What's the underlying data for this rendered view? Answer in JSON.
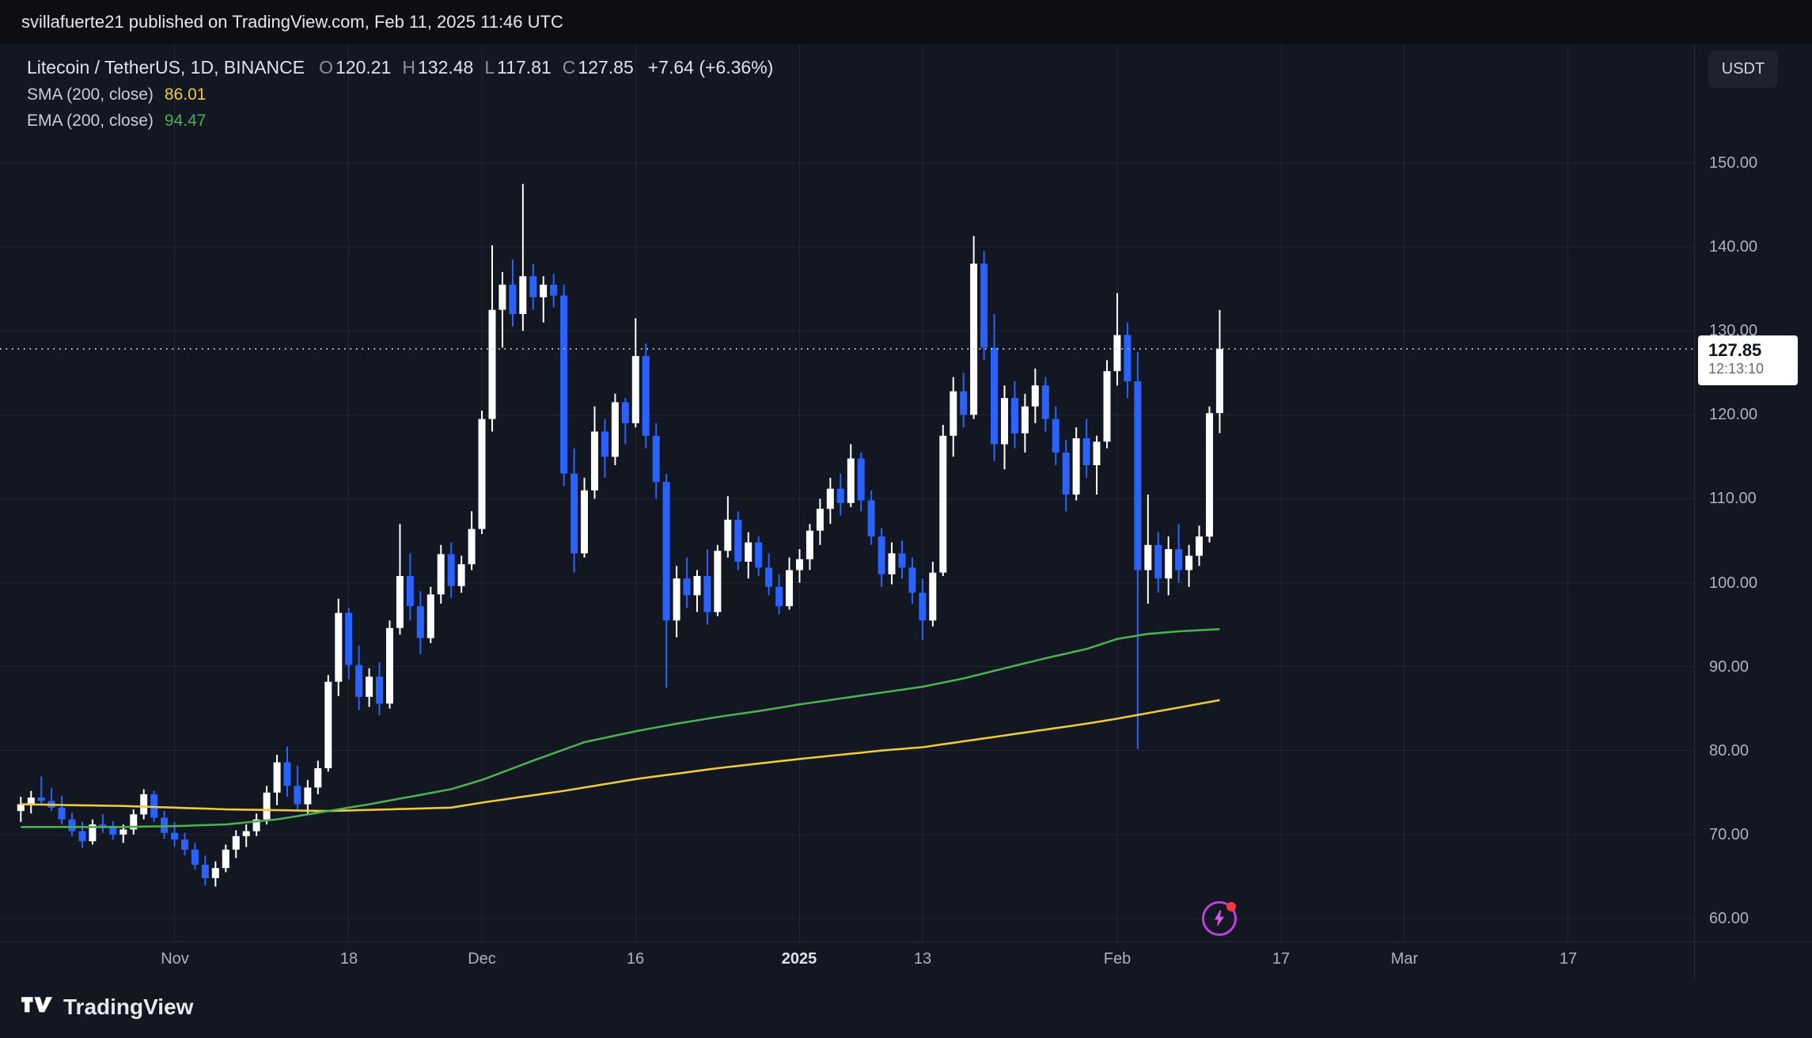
{
  "publish_bar": {
    "text": "svillafuerte21 published on TradingView.com, Feb 11, 2025 11:46 UTC"
  },
  "header": {
    "symbol_title": "Litecoin / TetherUS, 1D, BINANCE",
    "ohlc": [
      {
        "label": "O",
        "value": "120.21"
      },
      {
        "label": "H",
        "value": "132.48"
      },
      {
        "label": "L",
        "value": "117.81"
      },
      {
        "label": "C",
        "value": "127.85"
      }
    ],
    "change": "+7.64 (+6.36%)",
    "indicators": [
      {
        "name": "SMA (200, close)",
        "value": "86.01",
        "color": "#eecb3d"
      },
      {
        "name": "EMA (200, close)",
        "value": "94.47",
        "color": "#4caf50"
      }
    ]
  },
  "price_axis": {
    "currency_label": "USDT",
    "ticks": [
      150,
      140,
      130,
      120,
      110,
      100,
      90,
      80,
      70,
      60
    ],
    "last_price": {
      "value": "127.85",
      "countdown": "12:13:10"
    }
  },
  "time_axis": {
    "ticks": [
      {
        "label": "Nov",
        "day": 15
      },
      {
        "label": "18",
        "day": 32
      },
      {
        "label": "Dec",
        "day": 45
      },
      {
        "label": "16",
        "day": 60
      },
      {
        "label": "2025",
        "day": 76,
        "bold": true
      },
      {
        "label": "13",
        "day": 88
      },
      {
        "label": "Feb",
        "day": 107
      },
      {
        "label": "17",
        "day": 123
      },
      {
        "label": "Mar",
        "day": 135
      },
      {
        "label": "17",
        "day": 151
      }
    ]
  },
  "footer": {
    "brand": "TradingView"
  },
  "chart_data": {
    "type": "candlestick",
    "symbol": "LTC/USDT",
    "exchange": "BINANCE",
    "timeframe": "1D",
    "title": "Litecoin / TetherUS, 1D, BINANCE",
    "visible_price_range": [
      57,
      164
    ],
    "visible_time_range": [
      "2024-10-17",
      "2025-03-29"
    ],
    "grid": true,
    "colors": {
      "up": "#ffffff",
      "down": "#2962ff",
      "grid": "#212631",
      "background": "#131722"
    },
    "last_close": 127.85,
    "event_marker": {
      "day": 117,
      "icon": "lightning-icon",
      "notification_dot": true,
      "color": "#bf3fe0"
    },
    "candles": [
      [
        "2024-10-17",
        72.8,
        74.5,
        71.5,
        73.6
      ],
      [
        "2024-10-18",
        73.6,
        75.2,
        72.5,
        74.4
      ],
      [
        "2024-10-19",
        74.4,
        76.9,
        73.6,
        74.0
      ],
      [
        "2024-10-20",
        74.0,
        75.5,
        72.8,
        73.2
      ],
      [
        "2024-10-21",
        73.2,
        74.6,
        71.2,
        71.8
      ],
      [
        "2024-10-22",
        71.8,
        72.6,
        69.8,
        70.4
      ],
      [
        "2024-10-23",
        70.4,
        71.5,
        68.4,
        69.2
      ],
      [
        "2024-10-24",
        69.2,
        71.8,
        68.8,
        71.2
      ],
      [
        "2024-10-25",
        71.2,
        72.4,
        70.2,
        70.8
      ],
      [
        "2024-10-26",
        70.8,
        71.6,
        69.4,
        70.0
      ],
      [
        "2024-10-27",
        70.0,
        71.2,
        69.0,
        70.6
      ],
      [
        "2024-10-28",
        70.6,
        73.0,
        70.0,
        72.4
      ],
      [
        "2024-10-29",
        72.4,
        75.4,
        71.8,
        74.8
      ],
      [
        "2024-10-30",
        74.8,
        75.2,
        71.5,
        72.0
      ],
      [
        "2024-10-31",
        72.0,
        72.8,
        69.5,
        70.2
      ],
      [
        "2024-11-01",
        70.2,
        71.5,
        68.5,
        69.4
      ],
      [
        "2024-11-02",
        69.4,
        70.2,
        67.5,
        68.2
      ],
      [
        "2024-11-03",
        68.2,
        69.0,
        65.8,
        66.4
      ],
      [
        "2024-11-04",
        66.4,
        67.5,
        63.9,
        64.8
      ],
      [
        "2024-11-05",
        64.8,
        66.8,
        63.8,
        66.0
      ],
      [
        "2024-11-06",
        66.0,
        68.8,
        65.5,
        68.2
      ],
      [
        "2024-11-07",
        68.2,
        70.5,
        67.2,
        69.8
      ],
      [
        "2024-11-08",
        69.8,
        71.2,
        68.5,
        70.4
      ],
      [
        "2024-11-09",
        70.4,
        72.5,
        69.8,
        71.8
      ],
      [
        "2024-11-10",
        71.8,
        75.8,
        71.2,
        75.0
      ],
      [
        "2024-11-11",
        75.0,
        79.5,
        73.5,
        78.6
      ],
      [
        "2024-11-12",
        78.6,
        80.5,
        74.5,
        75.8
      ],
      [
        "2024-11-13",
        75.8,
        78.2,
        72.8,
        73.6
      ],
      [
        "2024-11-14",
        73.6,
        76.5,
        72.5,
        75.6
      ],
      [
        "2024-11-15",
        75.6,
        78.8,
        74.8,
        77.9
      ],
      [
        "2024-11-16",
        77.9,
        89.0,
        77.5,
        88.2
      ],
      [
        "2024-11-17",
        88.2,
        98.1,
        86.5,
        96.4
      ],
      [
        "2024-11-18",
        96.4,
        97.0,
        88.5,
        90.2
      ],
      [
        "2024-11-19",
        90.2,
        92.5,
        84.8,
        86.4
      ],
      [
        "2024-11-20",
        86.4,
        89.8,
        85.2,
        88.8
      ],
      [
        "2024-11-21",
        88.8,
        90.5,
        84.2,
        85.6
      ],
      [
        "2024-11-22",
        85.6,
        95.5,
        85.0,
        94.6
      ],
      [
        "2024-11-23",
        94.6,
        107.0,
        93.8,
        100.8
      ],
      [
        "2024-11-24",
        100.8,
        103.5,
        95.5,
        97.2
      ],
      [
        "2024-11-25",
        97.2,
        99.0,
        91.5,
        93.4
      ],
      [
        "2024-11-26",
        93.4,
        99.5,
        92.8,
        98.6
      ],
      [
        "2024-11-27",
        98.6,
        104.5,
        97.5,
        103.4
      ],
      [
        "2024-11-28",
        103.4,
        104.8,
        98.2,
        99.6
      ],
      [
        "2024-11-29",
        99.6,
        103.2,
        98.8,
        102.2
      ],
      [
        "2024-11-30",
        102.2,
        108.5,
        101.5,
        106.4
      ],
      [
        "2024-12-01",
        106.4,
        120.5,
        105.8,
        119.5
      ],
      [
        "2024-12-02",
        119.5,
        140.2,
        118.0,
        132.5
      ],
      [
        "2024-12-03",
        132.5,
        137.0,
        128.0,
        135.5
      ],
      [
        "2024-12-04",
        135.5,
        138.5,
        130.5,
        132.0
      ],
      [
        "2024-12-05",
        132.0,
        147.5,
        130.0,
        136.5
      ],
      [
        "2024-12-06",
        136.5,
        138.0,
        132.5,
        134.0
      ],
      [
        "2024-12-07",
        134.0,
        136.5,
        131.0,
        135.5
      ],
      [
        "2024-12-08",
        135.5,
        136.8,
        132.8,
        134.2
      ],
      [
        "2024-12-09",
        134.2,
        135.5,
        111.5,
        113.0
      ],
      [
        "2024-12-10",
        113.0,
        116.0,
        101.2,
        103.5
      ],
      [
        "2024-12-11",
        103.5,
        112.5,
        103.0,
        111.0
      ],
      [
        "2024-12-12",
        111.0,
        121.0,
        110.0,
        118.0
      ],
      [
        "2024-12-13",
        118.0,
        119.5,
        112.5,
        115.0
      ],
      [
        "2024-12-14",
        115.0,
        122.5,
        114.0,
        121.5
      ],
      [
        "2024-12-15",
        121.5,
        122.0,
        116.5,
        119.0
      ],
      [
        "2024-12-16",
        119.0,
        131.5,
        118.5,
        127.0
      ],
      [
        "2024-12-17",
        127.0,
        128.5,
        116.0,
        117.5
      ],
      [
        "2024-12-18",
        117.5,
        119.0,
        110.0,
        112.0
      ],
      [
        "2024-12-19",
        112.0,
        113.0,
        87.5,
        95.5
      ],
      [
        "2024-12-20",
        95.5,
        102.0,
        93.5,
        100.5
      ],
      [
        "2024-12-21",
        100.5,
        103.0,
        97.0,
        98.5
      ],
      [
        "2024-12-22",
        98.5,
        101.5,
        96.5,
        100.8
      ],
      [
        "2024-12-23",
        100.8,
        104.0,
        95.0,
        96.5
      ],
      [
        "2024-12-24",
        96.5,
        104.5,
        96.0,
        103.8
      ],
      [
        "2024-12-25",
        103.8,
        110.3,
        103.0,
        107.5
      ],
      [
        "2024-12-26",
        107.5,
        108.5,
        101.5,
        102.5
      ],
      [
        "2024-12-27",
        102.5,
        106.0,
        100.5,
        104.8
      ],
      [
        "2024-12-28",
        104.8,
        105.5,
        100.8,
        101.8
      ],
      [
        "2024-12-29",
        101.8,
        103.5,
        98.5,
        99.5
      ],
      [
        "2024-12-30",
        99.5,
        101.0,
        96.2,
        97.2
      ],
      [
        "2024-12-31",
        97.2,
        103.0,
        96.8,
        101.5
      ],
      [
        "2025-01-01",
        101.5,
        104.0,
        100.0,
        102.8
      ],
      [
        "2025-01-02",
        102.8,
        107.0,
        101.5,
        106.2
      ],
      [
        "2025-01-03",
        106.2,
        110.0,
        104.5,
        108.8
      ],
      [
        "2025-01-04",
        108.8,
        112.5,
        107.0,
        111.2
      ],
      [
        "2025-01-05",
        111.2,
        113.0,
        108.0,
        109.5
      ],
      [
        "2025-01-06",
        109.5,
        116.5,
        109.0,
        114.8
      ],
      [
        "2025-01-07",
        114.8,
        115.5,
        108.5,
        109.8
      ],
      [
        "2025-01-08",
        109.8,
        111.0,
        104.5,
        105.5
      ],
      [
        "2025-01-09",
        105.5,
        106.5,
        99.5,
        101.0
      ],
      [
        "2025-01-10",
        101.0,
        104.8,
        99.8,
        103.5
      ],
      [
        "2025-01-11",
        103.5,
        105.0,
        100.5,
        101.8
      ],
      [
        "2025-01-12",
        101.8,
        103.0,
        97.5,
        98.8
      ],
      [
        "2025-01-13",
        98.8,
        100.5,
        93.2,
        95.5
      ],
      [
        "2025-01-14",
        95.5,
        102.5,
        94.8,
        101.2
      ],
      [
        "2025-01-15",
        101.2,
        118.8,
        100.8,
        117.5
      ],
      [
        "2025-01-16",
        117.5,
        124.5,
        115.0,
        122.8
      ],
      [
        "2025-01-17",
        122.8,
        125.0,
        118.5,
        120.0
      ],
      [
        "2025-01-18",
        120.0,
        141.3,
        119.5,
        138.0
      ],
      [
        "2025-01-19",
        138.0,
        139.5,
        126.5,
        128.0
      ],
      [
        "2025-01-20",
        128.0,
        132.0,
        114.5,
        116.5
      ],
      [
        "2025-01-21",
        116.5,
        123.5,
        113.5,
        122.0
      ],
      [
        "2025-01-22",
        122.0,
        124.0,
        116.0,
        117.8
      ],
      [
        "2025-01-23",
        117.8,
        122.5,
        115.5,
        121.0
      ],
      [
        "2025-01-24",
        121.0,
        125.5,
        119.0,
        123.5
      ],
      [
        "2025-01-25",
        123.5,
        124.5,
        118.0,
        119.5
      ],
      [
        "2025-01-26",
        119.5,
        121.0,
        114.0,
        115.5
      ],
      [
        "2025-01-27",
        115.5,
        117.0,
        108.5,
        110.5
      ],
      [
        "2025-01-28",
        110.5,
        118.5,
        109.8,
        117.2
      ],
      [
        "2025-01-29",
        117.2,
        119.5,
        112.5,
        114.0
      ],
      [
        "2025-01-30",
        114.0,
        117.5,
        110.5,
        116.8
      ],
      [
        "2025-01-31",
        116.8,
        126.5,
        116.0,
        125.2
      ],
      [
        "2025-02-01",
        125.2,
        134.5,
        123.5,
        129.5
      ],
      [
        "2025-02-02",
        129.5,
        131.0,
        122.0,
        124.0
      ],
      [
        "2025-02-03",
        124.0,
        127.5,
        80.2,
        101.5
      ],
      [
        "2025-02-04",
        101.5,
        110.5,
        97.5,
        104.5
      ],
      [
        "2025-02-05",
        104.5,
        106.0,
        98.8,
        100.5
      ],
      [
        "2025-02-06",
        100.5,
        105.5,
        98.5,
        104.0
      ],
      [
        "2025-02-07",
        104.0,
        107.0,
        100.0,
        101.5
      ],
      [
        "2025-02-08",
        101.5,
        104.5,
        99.5,
        103.2
      ],
      [
        "2025-02-09",
        103.2,
        106.8,
        102.0,
        105.5
      ],
      [
        "2025-02-10",
        105.5,
        121.0,
        104.8,
        120.2
      ],
      [
        "2025-02-11",
        120.21,
        132.48,
        117.81,
        127.85
      ]
    ],
    "overlays": [
      {
        "id": "sma",
        "name": "SMA 200",
        "color": "#eecb3d",
        "points": [
          [
            0,
            73.6
          ],
          [
            10,
            73.4
          ],
          [
            20,
            73.0
          ],
          [
            30,
            72.8
          ],
          [
            42,
            73.2
          ],
          [
            45,
            73.8
          ],
          [
            53,
            75.2
          ],
          [
            60,
            76.6
          ],
          [
            68,
            77.9
          ],
          [
            76,
            79.0
          ],
          [
            84,
            80.0
          ],
          [
            88,
            80.4
          ],
          [
            96,
            81.8
          ],
          [
            104,
            83.2
          ],
          [
            107,
            83.8
          ],
          [
            112,
            84.9
          ],
          [
            117,
            86.01
          ]
        ]
      },
      {
        "id": "ema",
        "name": "EMA 200",
        "color": "#4caf50",
        "points": [
          [
            0,
            70.9
          ],
          [
            10,
            70.9
          ],
          [
            15,
            71.0
          ],
          [
            20,
            71.2
          ],
          [
            25,
            71.8
          ],
          [
            30,
            72.8
          ],
          [
            34,
            73.6
          ],
          [
            38,
            74.5
          ],
          [
            42,
            75.4
          ],
          [
            45,
            76.5
          ],
          [
            50,
            78.8
          ],
          [
            55,
            81.0
          ],
          [
            60,
            82.3
          ],
          [
            64,
            83.2
          ],
          [
            68,
            84.0
          ],
          [
            72,
            84.7
          ],
          [
            76,
            85.5
          ],
          [
            80,
            86.2
          ],
          [
            84,
            86.9
          ],
          [
            88,
            87.6
          ],
          [
            92,
            88.6
          ],
          [
            96,
            89.8
          ],
          [
            100,
            91.0
          ],
          [
            104,
            92.1
          ],
          [
            107,
            93.3
          ],
          [
            110,
            93.9
          ],
          [
            113,
            94.2
          ],
          [
            117,
            94.47
          ]
        ]
      }
    ]
  }
}
